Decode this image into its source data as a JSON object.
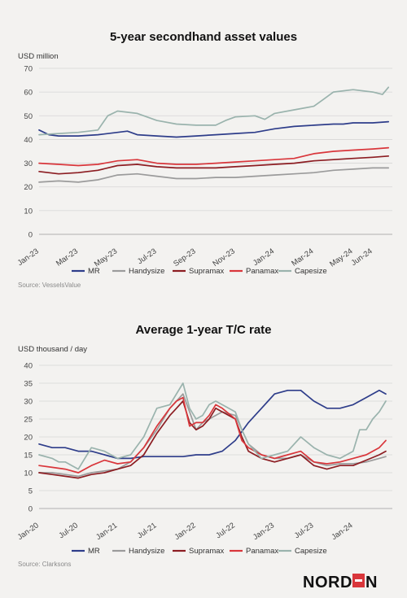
{
  "logo": {
    "prefix": "NORD",
    "suffix": "N"
  },
  "colors": {
    "MR": "#2e3d8a",
    "Handysize": "#9b9b9b",
    "Supramax": "#8c1d22",
    "Panamax": "#d9363b",
    "Capesize": "#9ab3ad"
  },
  "chart_data": [
    {
      "type": "line",
      "title": "5-year secondhand asset values",
      "ylabel": "USD million",
      "ylim": [
        0,
        70
      ],
      "yticks": [
        0,
        10,
        20,
        30,
        40,
        50,
        60,
        70
      ],
      "x_tick_labels": [
        "Jan-23",
        "Mar-23",
        "May-23",
        "Jul-23",
        "Sep-23",
        "Nov-23",
        "Jan-24",
        "Mar-24",
        "May-24",
        "Jun-24"
      ],
      "x_tick_months": [
        0,
        2,
        4,
        6,
        8,
        10,
        12,
        14,
        16,
        17
      ],
      "xlim_months": [
        0,
        18
      ],
      "grid": "horizontal",
      "legend": "bottom",
      "source": "Source: VesselsValue",
      "series": [
        {
          "name": "MR",
          "color_key": "MR",
          "x": [
            0,
            0.5,
            1,
            2,
            3,
            4,
            4.5,
            5,
            6,
            7,
            8,
            9,
            10,
            11,
            12,
            13,
            14,
            15,
            15.5,
            16,
            17,
            17.8
          ],
          "values": [
            44,
            42,
            41.5,
            41.5,
            42,
            43,
            43.5,
            42,
            41.5,
            41,
            41.5,
            42,
            42.5,
            43,
            44.5,
            45.5,
            46,
            46.5,
            46.5,
            47,
            47,
            47.5
          ]
        },
        {
          "name": "Handysize",
          "color_key": "Handysize",
          "x": [
            0,
            1,
            2,
            3,
            4,
            5,
            6,
            7,
            8,
            9,
            10,
            11,
            12,
            13,
            14,
            15,
            16,
            17,
            17.8
          ],
          "values": [
            22,
            22.5,
            22,
            23,
            25,
            25.5,
            24.5,
            23.5,
            23.5,
            24,
            24,
            24.5,
            25,
            25.5,
            26,
            27,
            27.5,
            28,
            28
          ]
        },
        {
          "name": "Supramax",
          "color_key": "Supramax",
          "x": [
            0,
            1,
            2,
            3,
            4,
            5,
            6,
            7,
            8,
            9,
            10,
            11,
            12,
            13,
            14,
            15,
            16,
            17,
            17.8
          ],
          "values": [
            26.5,
            25.5,
            26,
            27,
            29,
            29.5,
            28.5,
            28,
            28,
            28,
            28.5,
            29,
            29.5,
            30,
            31,
            31.5,
            32,
            32.5,
            33
          ]
        },
        {
          "name": "Panamax",
          "color_key": "Panamax",
          "x": [
            0,
            1,
            2,
            3,
            4,
            5,
            6,
            7,
            8,
            9,
            10,
            11,
            12,
            13,
            14,
            15,
            16,
            17,
            17.8
          ],
          "values": [
            30,
            29.5,
            29,
            29.5,
            31,
            31.5,
            30,
            29.5,
            29.5,
            30,
            30.5,
            31,
            31.5,
            32,
            34,
            35,
            35.5,
            36,
            36.5
          ]
        },
        {
          "name": "Capesize",
          "color_key": "Capesize",
          "x": [
            0,
            1,
            2,
            3,
            3.5,
            4,
            5,
            6,
            7,
            8,
            9,
            9.5,
            10,
            11,
            11.5,
            12,
            13,
            14,
            14.5,
            15,
            16,
            17,
            17.5,
            17.8
          ],
          "values": [
            42,
            42.5,
            43,
            44,
            50,
            52,
            51,
            48,
            46.5,
            46,
            46,
            48,
            49.5,
            50,
            48.5,
            51,
            52.5,
            54,
            57,
            60,
            61,
            60,
            59,
            62
          ]
        }
      ]
    },
    {
      "type": "line",
      "title": "Average 1-year T/C rate",
      "ylabel": "USD thousand / day",
      "ylim": [
        0,
        40
      ],
      "yticks": [
        0,
        5,
        10,
        15,
        20,
        25,
        30,
        35,
        40
      ],
      "x_tick_labels": [
        "Jan-20",
        "Jul-20",
        "Jan-21",
        "Jul-21",
        "Jan-22",
        "Jul-22",
        "Jan-23",
        "Jul-23",
        "Jan-24"
      ],
      "x_tick_months": [
        0,
        6,
        12,
        18,
        24,
        30,
        36,
        42,
        48
      ],
      "xlim_months": [
        0,
        54
      ],
      "grid": "horizontal",
      "legend": "bottom",
      "source": "Source: Clarksons",
      "series": [
        {
          "name": "MR",
          "color_key": "MR",
          "x": [
            0,
            2,
            4,
            6,
            8,
            10,
            12,
            14,
            16,
            18,
            20,
            22,
            24,
            26,
            28,
            30,
            32,
            34,
            35,
            36,
            38,
            40,
            42,
            44,
            46,
            48,
            50,
            52,
            53
          ],
          "values": [
            18,
            17,
            17,
            16,
            16,
            15,
            14,
            14,
            14.5,
            14.5,
            14.5,
            14.5,
            15,
            15,
            16,
            19,
            24,
            28,
            30,
            32,
            33,
            33,
            30,
            28,
            28,
            29,
            31,
            33,
            32
          ]
        },
        {
          "name": "Handysize",
          "color_key": "Handysize",
          "x": [
            0,
            2,
            4,
            6,
            8,
            10,
            12,
            14,
            16,
            18,
            20,
            21,
            22,
            23,
            24,
            25,
            26,
            28,
            30,
            31,
            32,
            34,
            36,
            38,
            40,
            42,
            44,
            46,
            48,
            50,
            52,
            53
          ],
          "values": [
            10,
            10,
            9.5,
            9,
            10,
            10.5,
            11,
            13,
            17,
            22,
            28,
            30,
            32,
            27,
            22,
            24,
            25,
            27,
            26,
            22,
            18,
            15,
            14,
            14,
            15,
            13,
            12,
            12.5,
            12.5,
            13,
            14,
            14.5
          ]
        },
        {
          "name": "Supramax",
          "color_key": "Supramax",
          "x": [
            0,
            2,
            4,
            6,
            8,
            10,
            12,
            14,
            16,
            18,
            20,
            21,
            22,
            23,
            24,
            25,
            26,
            27,
            28,
            30,
            31,
            32,
            34,
            36,
            38,
            40,
            42,
            44,
            46,
            48,
            50,
            52,
            53
          ],
          "values": [
            10,
            9.5,
            9,
            8.5,
            9.5,
            10,
            11,
            12,
            15,
            21,
            26,
            28,
            30,
            24,
            22,
            23,
            25,
            28,
            27,
            25,
            20,
            16,
            14,
            13,
            14,
            15,
            12,
            11,
            12,
            12,
            13.5,
            15,
            16
          ]
        },
        {
          "name": "Panamax",
          "color_key": "Panamax",
          "x": [
            0,
            2,
            4,
            6,
            8,
            10,
            12,
            14,
            16,
            18,
            20,
            21,
            22,
            23,
            24,
            25,
            26,
            27,
            28,
            30,
            31,
            32,
            34,
            36,
            38,
            40,
            42,
            44,
            46,
            48,
            50,
            52,
            53
          ],
          "values": [
            12,
            11.5,
            11,
            10,
            12,
            13.5,
            12.5,
            13,
            17,
            23,
            28,
            30,
            31,
            23,
            24,
            24,
            26,
            29,
            28,
            25,
            19,
            17,
            15,
            14,
            15,
            16,
            13,
            12.5,
            13,
            14,
            15,
            17,
            19
          ]
        },
        {
          "name": "Capesize",
          "color_key": "Capesize",
          "x": [
            0,
            2,
            3,
            4,
            5,
            6,
            8,
            10,
            12,
            14,
            16,
            18,
            20,
            22,
            23,
            24,
            25,
            26,
            27,
            28,
            30,
            31,
            32,
            34,
            36,
            38,
            40,
            42,
            44,
            46,
            48,
            49,
            50,
            51,
            52,
            53
          ],
          "values": [
            15,
            14,
            13,
            13,
            12,
            11,
            17,
            16,
            14,
            15,
            20,
            28,
            29,
            35,
            28,
            25,
            26,
            29,
            30,
            29,
            27,
            22,
            18,
            14,
            15,
            16,
            20,
            17,
            15,
            14,
            16,
            22,
            22,
            25,
            27,
            30
          ]
        }
      ]
    }
  ]
}
